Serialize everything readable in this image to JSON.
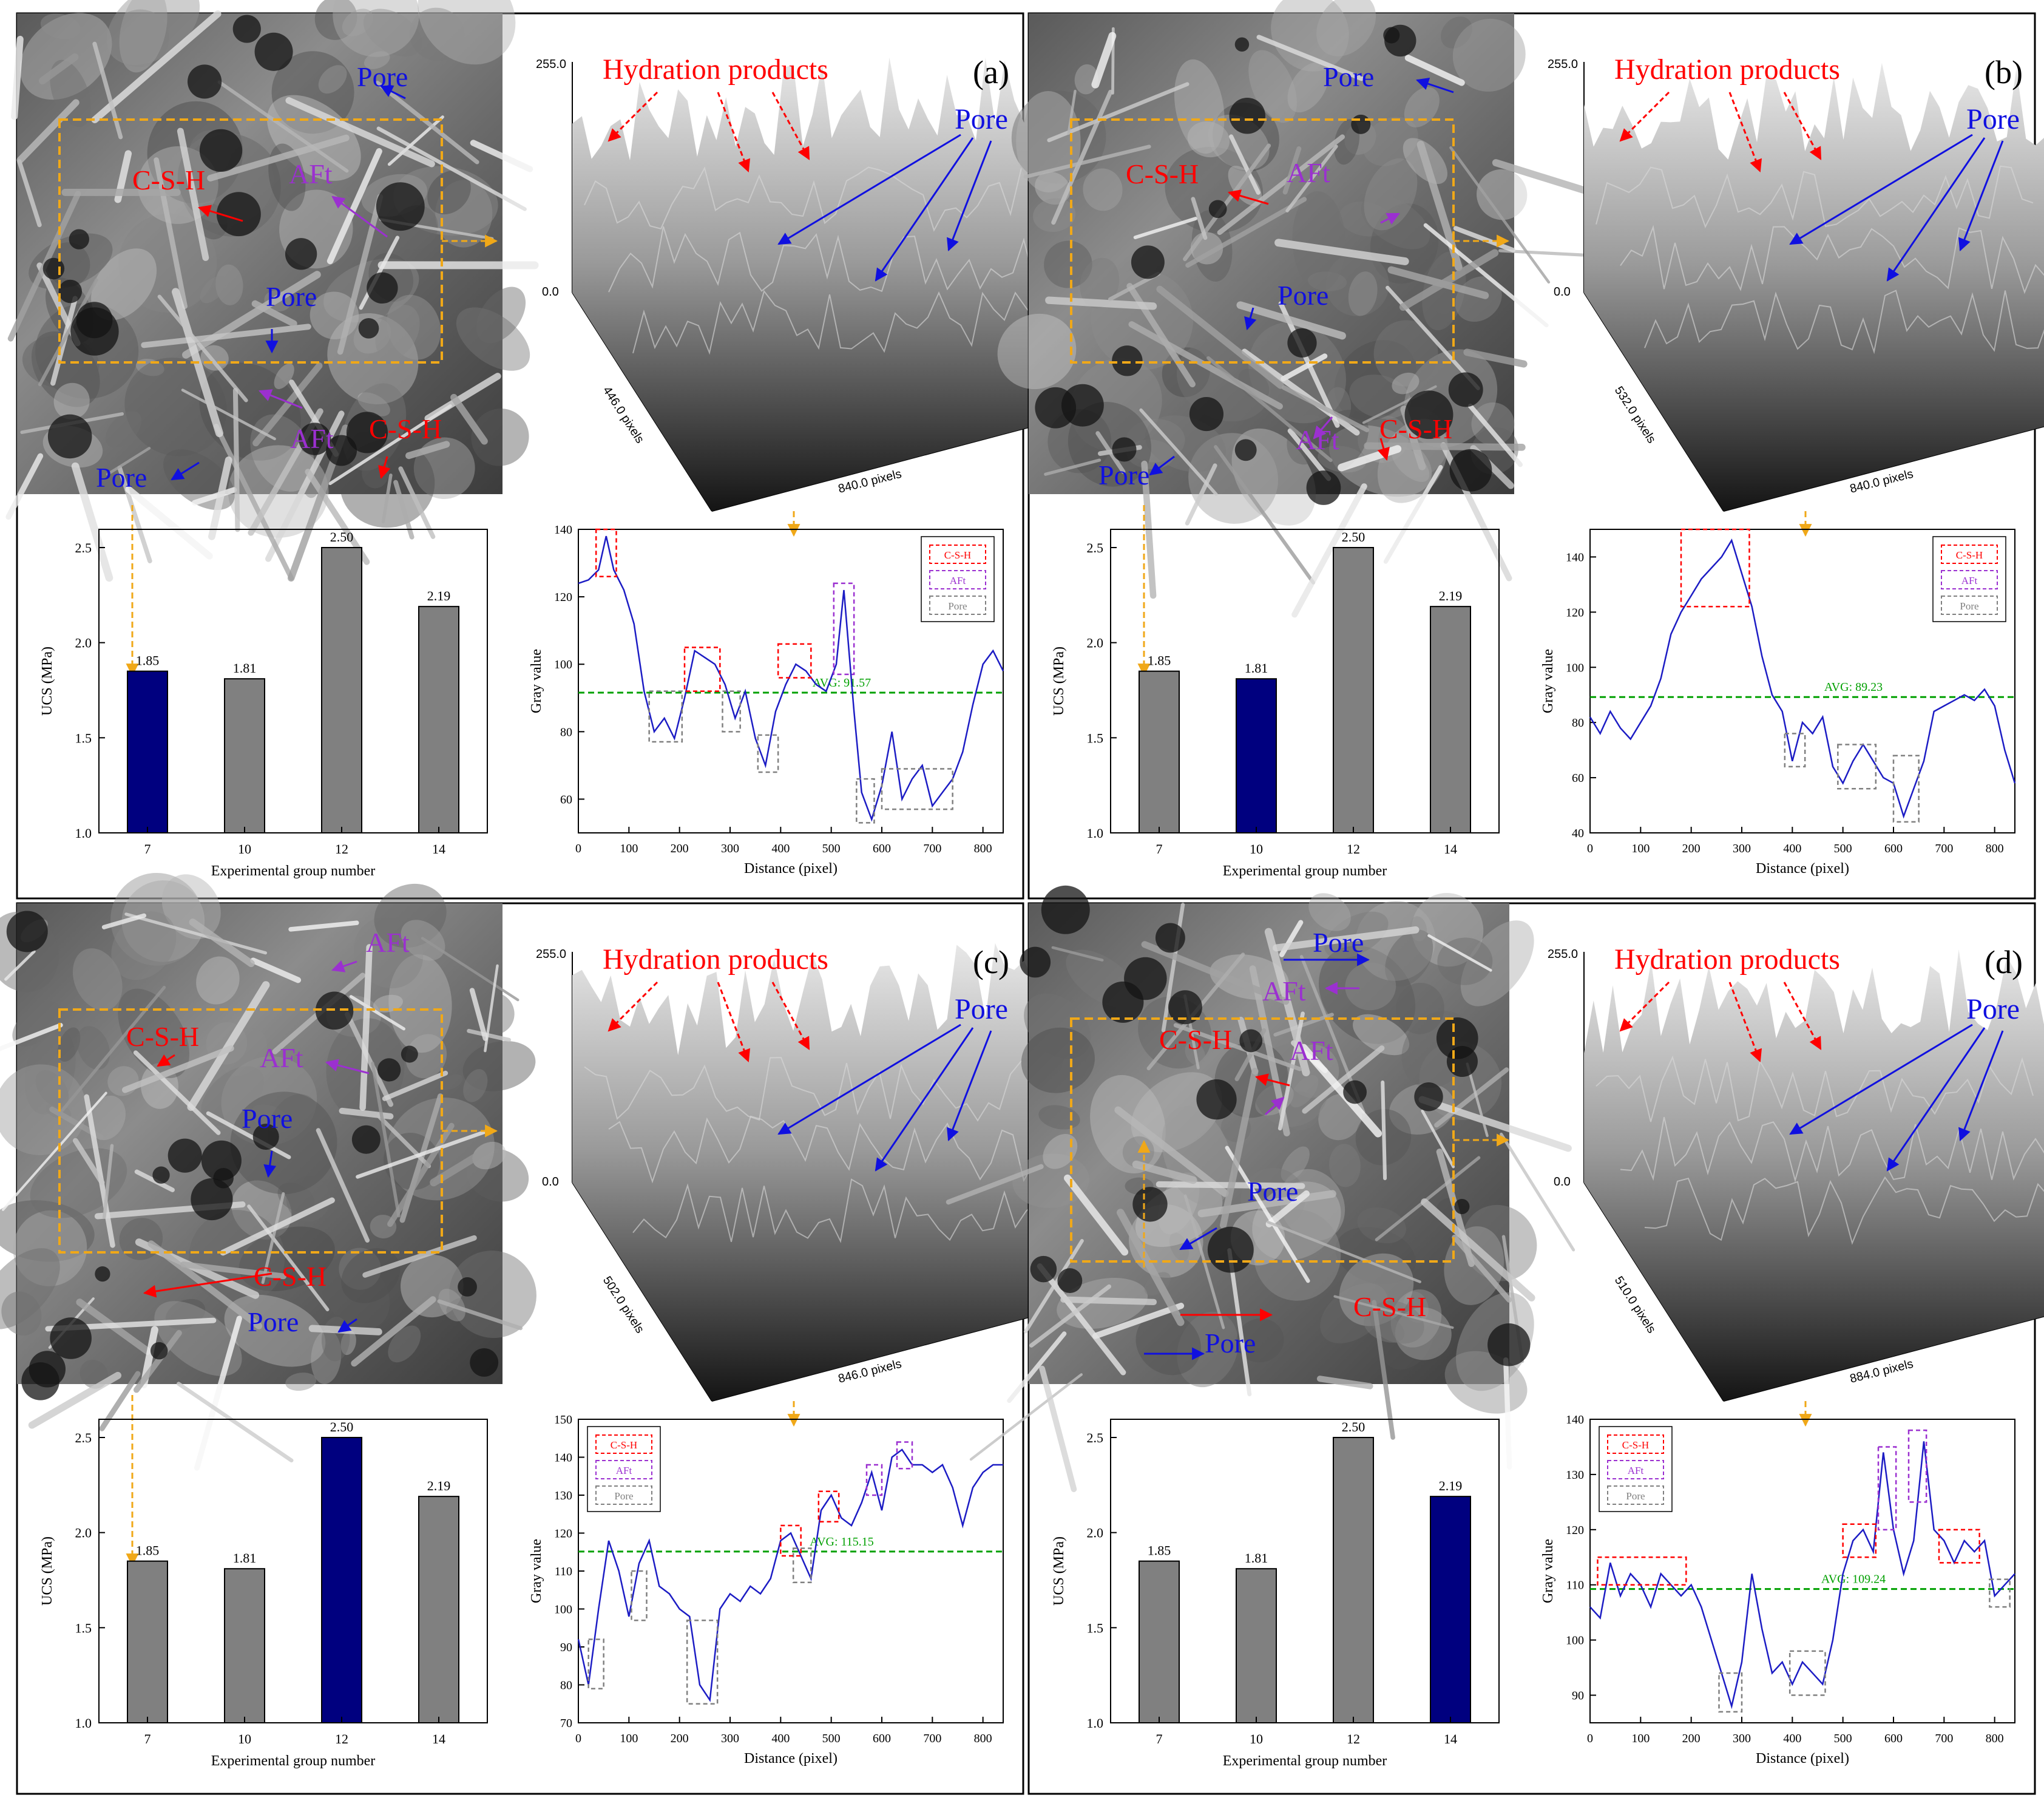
{
  "labels": {
    "hydration": "Hydration products",
    "pore": "Pore",
    "csh": "C-S-H",
    "aft": "AFt",
    "zmax": "255.0",
    "zmin": "0.0",
    "pixels_suffix": " pixels"
  },
  "colors": {
    "highlight_bar": "#00007f",
    "bar": "#808080",
    "avg_line": "#00a000",
    "profile_line": "#1c1cc4",
    "csh": "#ff0000",
    "aft": "#9b30d0",
    "pore": "#808080",
    "arrow_orange": "#f0a818",
    "dashed_box": "#f0a818"
  },
  "panels": [
    {
      "id": "(a)",
      "sem_labels": [
        {
          "text": "Pore",
          "color": "pore"
        },
        {
          "text": "C-S-H",
          "color": "csh"
        },
        {
          "text": "AFt",
          "color": "aft"
        },
        {
          "text": "Pore",
          "color": "pore"
        },
        {
          "text": "AFt",
          "color": "aft"
        },
        {
          "text": "C-S-H",
          "color": "csh"
        },
        {
          "text": "Pore",
          "color": "pore"
        }
      ],
      "surface": {
        "depth_px": "446.0",
        "width_px": "840.0"
      },
      "chart_data": [
        {
          "type": "bar",
          "categories": [
            "7",
            "10",
            "12",
            "14"
          ],
          "values": [
            1.85,
            1.81,
            2.5,
            2.19
          ],
          "value_labels": [
            "1.85",
            "1.81",
            "2.50",
            "2.19"
          ],
          "highlight_index": 0,
          "xlabel": "Experimental group number",
          "ylabel": "UCS (MPa)",
          "ylim": [
            1.0,
            2.5
          ],
          "yticks": [
            "1.0",
            "1.5",
            "2.0",
            "2.5"
          ]
        },
        {
          "type": "line",
          "xlabel": "Distance (pixel)",
          "ylabel": "Gray value",
          "xlim": [
            0,
            840
          ],
          "ylim": [
            50,
            140
          ],
          "xticks": [
            "0",
            "100",
            "200",
            "300",
            "400",
            "500",
            "600",
            "700",
            "800"
          ],
          "yticks": [
            "60",
            "80",
            "100",
            "120",
            "140"
          ],
          "avg_label": "AVG: 91.57",
          "avg": 91.57,
          "legend": [
            "C-S-H",
            "AFt",
            "Pore"
          ],
          "x": [
            0,
            20,
            40,
            55,
            70,
            90,
            110,
            130,
            150,
            170,
            190,
            210,
            230,
            250,
            270,
            290,
            310,
            330,
            350,
            370,
            390,
            410,
            430,
            450,
            470,
            490,
            510,
            525,
            545,
            560,
            580,
            600,
            620,
            640,
            660,
            680,
            700,
            720,
            740,
            760,
            780,
            800,
            820,
            840
          ],
          "y": [
            124,
            125,
            128,
            138,
            128,
            122,
            112,
            92,
            80,
            84,
            78,
            90,
            104,
            102,
            100,
            94,
            84,
            92,
            78,
            70,
            86,
            94,
            100,
            98,
            94,
            92,
            100,
            122,
            86,
            62,
            54,
            64,
            80,
            60,
            66,
            70,
            58,
            62,
            66,
            74,
            88,
            100,
            104,
            98
          ],
          "boxes": [
            {
              "kind": "csh",
              "x0": 35,
              "x1": 75,
              "y0": 126,
              "y1": 140
            },
            {
              "kind": "csh",
              "x0": 210,
              "x1": 280,
              "y0": 92,
              "y1": 105
            },
            {
              "kind": "csh",
              "x0": 395,
              "x1": 460,
              "y0": 96,
              "y1": 106
            },
            {
              "kind": "aft",
              "x0": 505,
              "x1": 545,
              "y0": 97,
              "y1": 124
            },
            {
              "kind": "pore",
              "x0": 140,
              "x1": 205,
              "y0": 77,
              "y1": 92
            },
            {
              "kind": "pore",
              "x0": 285,
              "x1": 320,
              "y0": 80,
              "y1": 92
            },
            {
              "kind": "pore",
              "x0": 355,
              "x1": 395,
              "y0": 68,
              "y1": 79
            },
            {
              "kind": "pore",
              "x0": 550,
              "x1": 585,
              "y0": 53,
              "y1": 66
            },
            {
              "kind": "pore",
              "x0": 600,
              "x1": 740,
              "y0": 57,
              "y1": 69
            }
          ]
        }
      ]
    },
    {
      "id": "(b)",
      "sem_labels": [
        {
          "text": "Pore",
          "color": "pore"
        },
        {
          "text": "C-S-H",
          "color": "csh"
        },
        {
          "text": "AFt",
          "color": "aft"
        },
        {
          "text": "Pore",
          "color": "pore"
        },
        {
          "text": "AFt",
          "color": "aft"
        },
        {
          "text": "C-S-H",
          "color": "csh"
        },
        {
          "text": "Pore",
          "color": "pore"
        }
      ],
      "surface": {
        "depth_px": "532.0",
        "width_px": "840.0"
      },
      "chart_data": [
        {
          "type": "bar",
          "categories": [
            "7",
            "10",
            "12",
            "14"
          ],
          "values": [
            1.85,
            1.81,
            2.5,
            2.19
          ],
          "value_labels": [
            "1.85",
            "1.81",
            "2.50",
            "2.19"
          ],
          "highlight_index": 1,
          "xlabel": "Experimental group number",
          "ylabel": "UCS (MPa)",
          "ylim": [
            1.0,
            2.5
          ],
          "yticks": [
            "1.0",
            "1.5",
            "2.0",
            "2.5"
          ]
        },
        {
          "type": "line",
          "xlabel": "Distance (pixel)",
          "ylabel": "Gray value",
          "xlim": [
            0,
            840
          ],
          "ylim": [
            40,
            150
          ],
          "xticks": [
            "0",
            "100",
            "200",
            "300",
            "400",
            "500",
            "600",
            "700",
            "800"
          ],
          "yticks": [
            "40",
            "60",
            "80",
            "100",
            "120",
            "140"
          ],
          "avg_label": "AVG: 89.23",
          "avg": 89.23,
          "legend": [
            "C-S-H",
            "AFt",
            "Pore"
          ],
          "x": [
            0,
            20,
            40,
            60,
            80,
            100,
            120,
            140,
            160,
            180,
            200,
            220,
            240,
            260,
            280,
            300,
            320,
            340,
            360,
            380,
            400,
            420,
            440,
            460,
            480,
            500,
            520,
            540,
            560,
            580,
            600,
            620,
            640,
            660,
            680,
            700,
            720,
            740,
            760,
            780,
            800,
            820,
            840
          ],
          "y": [
            82,
            76,
            84,
            78,
            74,
            80,
            86,
            96,
            112,
            120,
            126,
            132,
            136,
            140,
            146,
            134,
            122,
            104,
            90,
            84,
            66,
            80,
            76,
            82,
            64,
            58,
            66,
            72,
            66,
            60,
            58,
            46,
            56,
            66,
            84,
            86,
            88,
            90,
            88,
            92,
            86,
            70,
            58
          ],
          "boxes": [
            {
              "kind": "csh",
              "x0": 180,
              "x1": 315,
              "y0": 122,
              "y1": 150
            },
            {
              "kind": "pore",
              "x0": 385,
              "x1": 425,
              "y0": 64,
              "y1": 76
            },
            {
              "kind": "pore",
              "x0": 490,
              "x1": 565,
              "y0": 56,
              "y1": 72
            },
            {
              "kind": "pore",
              "x0": 600,
              "x1": 650,
              "y0": 44,
              "y1": 68
            }
          ]
        }
      ]
    },
    {
      "id": "(c)",
      "sem_labels": [
        {
          "text": "AFt",
          "color": "aft"
        },
        {
          "text": "C-S-H",
          "color": "csh"
        },
        {
          "text": "AFt",
          "color": "aft"
        },
        {
          "text": "Pore",
          "color": "pore"
        },
        {
          "text": "C-S-H",
          "color": "csh"
        },
        {
          "text": "Pore",
          "color": "pore"
        }
      ],
      "surface": {
        "depth_px": "502.0",
        "width_px": "846.0"
      },
      "chart_data": [
        {
          "type": "bar",
          "categories": [
            "7",
            "10",
            "12",
            "14"
          ],
          "values": [
            1.85,
            1.81,
            2.5,
            2.19
          ],
          "value_labels": [
            "1.85",
            "1.81",
            "2.50",
            "2.19"
          ],
          "highlight_index": 2,
          "xlabel": "Experimental group number",
          "ylabel": "UCS (MPa)",
          "ylim": [
            1.0,
            2.5
          ],
          "yticks": [
            "1.0",
            "1.5",
            "2.0",
            "2.5"
          ]
        },
        {
          "type": "line",
          "xlabel": "Distance (pixel)",
          "ylabel": "Gray value",
          "xlim": [
            0,
            840
          ],
          "ylim": [
            70,
            150
          ],
          "xticks": [
            "0",
            "100",
            "200",
            "300",
            "400",
            "500",
            "600",
            "700",
            "800"
          ],
          "yticks": [
            "70",
            "80",
            "90",
            "100",
            "110",
            "120",
            "130",
            "140",
            "150"
          ],
          "avg_label": "AVG: 115.15",
          "avg": 115.15,
          "legend": [
            "C-S-H",
            "AFt",
            "Pore"
          ],
          "x": [
            0,
            20,
            40,
            60,
            80,
            100,
            120,
            140,
            160,
            180,
            200,
            220,
            240,
            260,
            280,
            300,
            320,
            340,
            360,
            380,
            400,
            420,
            440,
            460,
            480,
            500,
            520,
            540,
            560,
            580,
            600,
            620,
            640,
            660,
            680,
            700,
            720,
            740,
            760,
            780,
            800,
            820,
            840
          ],
          "y": [
            92,
            80,
            100,
            118,
            110,
            98,
            112,
            118,
            106,
            104,
            100,
            98,
            80,
            76,
            100,
            104,
            102,
            106,
            104,
            108,
            118,
            120,
            114,
            108,
            126,
            130,
            124,
            122,
            128,
            136,
            126,
            140,
            142,
            138,
            138,
            136,
            138,
            132,
            122,
            132,
            136,
            138,
            138
          ],
          "boxes": [
            {
              "kind": "pore",
              "x0": 20,
              "x1": 50,
              "y0": 79,
              "y1": 92
            },
            {
              "kind": "pore",
              "x0": 105,
              "x1": 135,
              "y0": 97,
              "y1": 110
            },
            {
              "kind": "pore",
              "x0": 215,
              "x1": 275,
              "y0": 75,
              "y1": 97
            },
            {
              "kind": "pore",
              "x0": 425,
              "x1": 460,
              "y0": 107,
              "y1": 116
            },
            {
              "kind": "csh",
              "x0": 400,
              "x1": 440,
              "y0": 114,
              "y1": 122
            },
            {
              "kind": "csh",
              "x0": 475,
              "x1": 515,
              "y0": 123,
              "y1": 131
            },
            {
              "kind": "aft",
              "x0": 570,
              "x1": 600,
              "y0": 130,
              "y1": 138
            },
            {
              "kind": "aft",
              "x0": 630,
              "x1": 660,
              "y0": 137,
              "y1": 144
            }
          ]
        }
      ]
    },
    {
      "id": "(d)",
      "sem_labels": [
        {
          "text": "Pore",
          "color": "pore"
        },
        {
          "text": "AFt",
          "color": "aft"
        },
        {
          "text": "C-S-H",
          "color": "csh"
        },
        {
          "text": "AFt",
          "color": "aft"
        },
        {
          "text": "Pore",
          "color": "pore"
        },
        {
          "text": "C-S-H",
          "color": "csh"
        },
        {
          "text": "Pore",
          "color": "pore"
        }
      ],
      "surface": {
        "depth_px": "510.0",
        "width_px": "884.0"
      },
      "chart_data": [
        {
          "type": "bar",
          "categories": [
            "7",
            "10",
            "12",
            "14"
          ],
          "values": [
            1.85,
            1.81,
            2.5,
            2.19
          ],
          "value_labels": [
            "1.85",
            "1.81",
            "2.50",
            "2.19"
          ],
          "highlight_index": 3,
          "xlabel": "Experimental group number",
          "ylabel": "UCS (MPa)",
          "ylim": [
            1.0,
            2.5
          ],
          "yticks": [
            "1.0",
            "1.5",
            "2.0",
            "2.5"
          ]
        },
        {
          "type": "line",
          "xlabel": "Distance (pixel)",
          "ylabel": "Gray value",
          "xlim": [
            0,
            840
          ],
          "ylim": [
            85,
            140
          ],
          "xticks": [
            "0",
            "100",
            "200",
            "300",
            "400",
            "500",
            "600",
            "700",
            "800"
          ],
          "yticks": [
            "90",
            "100",
            "110",
            "120",
            "130",
            "140"
          ],
          "avg_label": "AVG: 109.24",
          "avg": 109.24,
          "legend": [
            "C-S-H",
            "AFt",
            "Pore"
          ],
          "x": [
            0,
            20,
            40,
            60,
            80,
            100,
            120,
            140,
            160,
            180,
            200,
            220,
            240,
            260,
            280,
            300,
            320,
            340,
            360,
            380,
            400,
            420,
            440,
            460,
            480,
            500,
            520,
            540,
            560,
            580,
            600,
            620,
            640,
            660,
            680,
            700,
            720,
            740,
            760,
            780,
            800,
            820,
            840
          ],
          "y": [
            106,
            104,
            114,
            108,
            112,
            110,
            106,
            112,
            110,
            108,
            110,
            106,
            100,
            94,
            88,
            96,
            112,
            102,
            94,
            96,
            92,
            96,
            94,
            92,
            100,
            112,
            118,
            120,
            116,
            134,
            120,
            112,
            118,
            136,
            120,
            118,
            114,
            118,
            116,
            118,
            108,
            110,
            112
          ],
          "boxes": [
            {
              "kind": "csh",
              "x0": 15,
              "x1": 190,
              "y0": 110,
              "y1": 115
            },
            {
              "kind": "pore",
              "x0": 255,
              "x1": 300,
              "y0": 87,
              "y1": 94
            },
            {
              "kind": "pore",
              "x0": 395,
              "x1": 465,
              "y0": 90,
              "y1": 98
            },
            {
              "kind": "csh",
              "x0": 500,
              "x1": 565,
              "y0": 115,
              "y1": 121
            },
            {
              "kind": "aft",
              "x0": 570,
              "x1": 605,
              "y0": 120,
              "y1": 135
            },
            {
              "kind": "aft",
              "x0": 630,
              "x1": 665,
              "y0": 125,
              "y1": 138
            },
            {
              "kind": "csh",
              "x0": 690,
              "x1": 770,
              "y0": 114,
              "y1": 120
            },
            {
              "kind": "pore",
              "x0": 790,
              "x1": 830,
              "y0": 106,
              "y1": 111
            }
          ]
        }
      ]
    }
  ]
}
